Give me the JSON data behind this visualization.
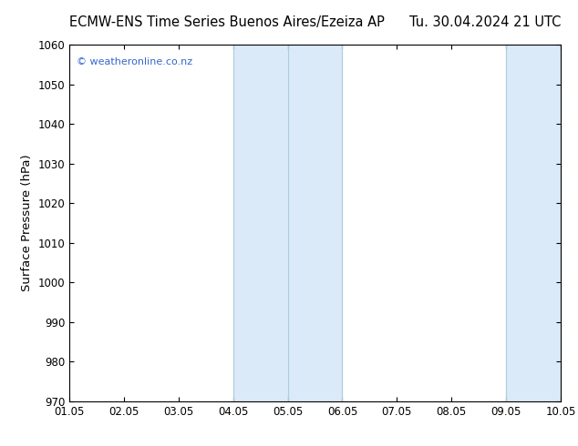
{
  "title_left": "ECMW-ENS Time Series Buenos Aires/Ezeiza AP",
  "title_right": "Tu. 30.04.2024 21 UTC",
  "ylabel": "Surface Pressure (hPa)",
  "ylim": [
    970,
    1060
  ],
  "yticks": [
    970,
    980,
    990,
    1000,
    1010,
    1020,
    1030,
    1040,
    1050,
    1060
  ],
  "xlim": [
    0,
    9
  ],
  "xtick_labels": [
    "01.05",
    "02.05",
    "03.05",
    "04.05",
    "05.05",
    "06.05",
    "07.05",
    "08.05",
    "09.05",
    "10.05"
  ],
  "xtick_positions": [
    0,
    1,
    2,
    3,
    4,
    5,
    6,
    7,
    8,
    9
  ],
  "shaded_regions": [
    {
      "xmin": 3.0,
      "xmax": 5.0,
      "color": "#daeaf8"
    },
    {
      "xmin": 8.0,
      "xmax": 9.0,
      "color": "#daeaf8"
    }
  ],
  "vlines": [
    {
      "x": 3.0,
      "color": "#b0ccdd",
      "lw": 0.8
    },
    {
      "x": 4.0,
      "color": "#b0ccdd",
      "lw": 0.8
    },
    {
      "x": 5.0,
      "color": "#b0ccdd",
      "lw": 0.8
    },
    {
      "x": 8.0,
      "color": "#b0ccdd",
      "lw": 0.8
    },
    {
      "x": 9.0,
      "color": "#b0ccdd",
      "lw": 0.8
    }
  ],
  "watermark": "© weatheronline.co.nz",
  "watermark_color": "#3366cc",
  "background_color": "#ffffff",
  "plot_bg_color": "#ffffff",
  "title_fontsize": 10.5,
  "label_fontsize": 9.5,
  "tick_fontsize": 8.5
}
